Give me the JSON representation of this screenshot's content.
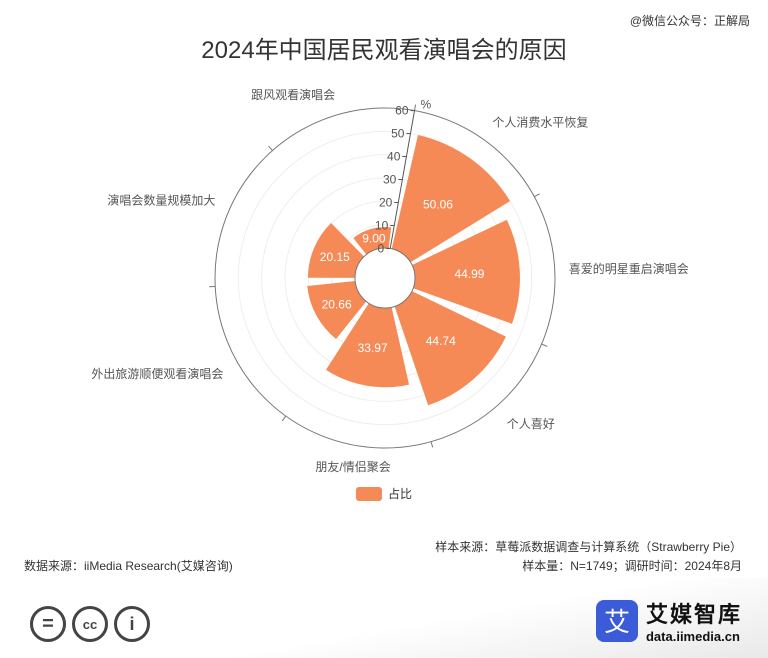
{
  "watermark": "@微信公众号：正解局",
  "chart_data": {
    "type": "polar-bar",
    "title": "2024年中国居民观看演唱会的原因",
    "unit": "%",
    "radial_ticks": [
      "0",
      "10",
      "20",
      "30",
      "40",
      "50",
      "60"
    ],
    "rmax": 60,
    "categories": [
      "个人消费水平恢复",
      "喜爱的明星重启演唱会",
      "个人喜好",
      "朋友/情侣聚会",
      "外出旅游顺便观看演唱会",
      "演唱会数量规模加大",
      "跟风观看演唱会"
    ],
    "series": [
      {
        "name": "占比",
        "values": [
          50.06,
          44.99,
          44.74,
          33.97,
          20.66,
          20.15,
          9.0
        ]
      }
    ],
    "value_labels": [
      "50.06",
      "44.99",
      "44.74",
      "33.97",
      "20.66",
      "20.15",
      "9.00"
    ],
    "color": "#f58a56",
    "legend_position": "bottom"
  },
  "footer": {
    "source": "数据来源：iiMedia Research(艾媒咨询)",
    "sample_source": "样本来源：草莓派数据调查与计算系统（Strawberry Pie）",
    "sample_info": "样本量：N=1749；调研时间：2024年8月",
    "cc_icons": [
      "=",
      "cc",
      "i"
    ]
  },
  "brand": {
    "logo_char": "艾",
    "name": "艾媒智库",
    "url": "data.iimedia.cn",
    "color": "#3b5bd9"
  }
}
